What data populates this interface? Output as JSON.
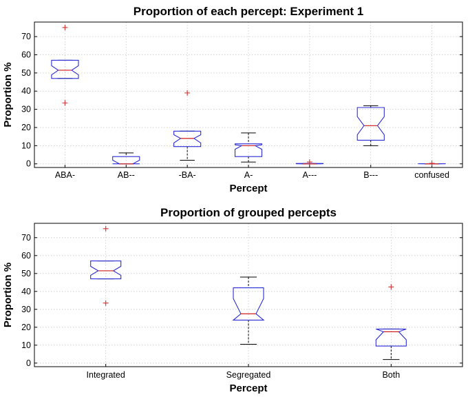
{
  "chart_data": [
    {
      "type": "box",
      "title": "Proportion of each percept: Experiment 1",
      "xlabel": "Percept",
      "ylabel": "Proportion %",
      "ylim": [
        -2,
        78
      ],
      "yticks": [
        0,
        10,
        20,
        30,
        40,
        50,
        60,
        70
      ],
      "grid": true,
      "notched": true,
      "colors": {
        "box": "#2b2bd6",
        "median": "#d03030",
        "whisker": "#000000",
        "outlier": "#d03030"
      },
      "categories": [
        "ABA-",
        "AB--",
        "-BA-",
        "A-",
        "A---",
        "B---",
        "confused"
      ],
      "boxes": [
        {
          "q1": 47,
          "median": 51.5,
          "q3": 57,
          "whisker_low": 47,
          "whisker_high": 57,
          "notch_low": 49,
          "notch_high": 54,
          "outliers": [
            75,
            33.5
          ]
        },
        {
          "q1": 0,
          "median": 0,
          "q3": 4,
          "whisker_low": 0,
          "whisker_high": 6,
          "notch_low": 0,
          "notch_high": 2,
          "outliers": []
        },
        {
          "q1": 9.5,
          "median": 14,
          "q3": 18,
          "whisker_low": 2,
          "whisker_high": 18,
          "notch_low": 11.5,
          "notch_high": 16,
          "outliers": [
            39
          ]
        },
        {
          "q1": 4,
          "median": 10,
          "q3": 11,
          "whisker_low": 1,
          "whisker_high": 17,
          "notch_low": 8,
          "notch_high": 10.5,
          "outliers": []
        },
        {
          "q1": 0,
          "median": 0,
          "q3": 0.2,
          "whisker_low": 0,
          "whisker_high": 0.2,
          "notch_low": 0,
          "notch_high": 0.1,
          "outliers": [
            1
          ]
        },
        {
          "q1": 13,
          "median": 21,
          "q3": 31,
          "whisker_low": 10,
          "whisker_high": 32,
          "notch_low": 16,
          "notch_high": 26,
          "outliers": []
        },
        {
          "q1": 0,
          "median": 0,
          "q3": 0.1,
          "whisker_low": 0,
          "whisker_high": 0.1,
          "notch_low": 0,
          "notch_high": 0.05,
          "outliers": [
            0.3
          ]
        }
      ]
    },
    {
      "type": "box",
      "title": "Proportion of grouped percepts",
      "xlabel": "Percept",
      "ylabel": "Proportion %",
      "ylim": [
        -2,
        78
      ],
      "yticks": [
        0,
        10,
        20,
        30,
        40,
        50,
        60,
        70
      ],
      "grid": true,
      "notched": true,
      "colors": {
        "box": "#2b2bd6",
        "median": "#d03030",
        "whisker": "#000000",
        "outlier": "#d03030"
      },
      "categories": [
        "Integrated",
        "Segregated",
        "Both"
      ],
      "boxes": [
        {
          "q1": 47,
          "median": 51.5,
          "q3": 57,
          "whisker_low": 47,
          "whisker_high": 57,
          "notch_low": 49,
          "notch_high": 54,
          "outliers": [
            75,
            33.5
          ]
        },
        {
          "q1": 24,
          "median": 27.5,
          "q3": 42,
          "whisker_low": 10.5,
          "whisker_high": 48,
          "notch_low": 24,
          "notch_high": 36,
          "outliers": []
        },
        {
          "q1": 9.5,
          "median": 17.5,
          "q3": 19,
          "whisker_low": 2,
          "whisker_high": 19,
          "notch_low": 13,
          "notch_high": 19,
          "outliers": [
            42.5
          ]
        }
      ]
    }
  ]
}
